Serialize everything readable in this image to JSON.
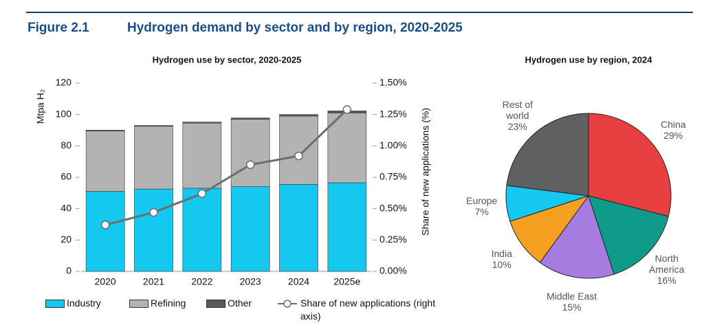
{
  "header": {
    "figure": "Figure 2.1",
    "title": "Hydrogen demand by sector and by region, 2020-2025"
  },
  "chart_data": [
    {
      "type": "bar",
      "stacked": true,
      "title": "Hydrogen use by sector, 2020-2025",
      "y_label": "Mtpa H₂",
      "y2_label": "Share of new applications (%)",
      "categories": [
        "2020",
        "2021",
        "2022",
        "2023",
        "2024",
        "2025e"
      ],
      "series": [
        {
          "name": "Industry",
          "color": "#14c8f0",
          "values": [
            51,
            52.5,
            53,
            54,
            55.5,
            56.5
          ]
        },
        {
          "name": "Refining",
          "color": "#b3b3b3",
          "values": [
            38.5,
            40,
            41.5,
            43,
            43.5,
            44.5
          ]
        },
        {
          "name": "Other",
          "color": "#595959",
          "values": [
            0.5,
            0.5,
            0.7,
            0.8,
            1,
            1.3
          ]
        },
        {
          "name": "Share of new applications (right axis)",
          "type": "line",
          "axis": "y2",
          "color": "#6d6d6d",
          "values": [
            0.37,
            0.47,
            0.62,
            0.85,
            0.92,
            1.29
          ]
        }
      ],
      "ylim": [
        0,
        120
      ],
      "yticks": [
        0,
        20,
        40,
        60,
        80,
        100,
        120
      ],
      "y2lim": [
        0,
        1.5
      ],
      "y2ticks": [
        {
          "value": 0,
          "label": "0.00%"
        },
        {
          "value": 0.25,
          "label": "0.25%"
        },
        {
          "value": 0.5,
          "label": "0.50%"
        },
        {
          "value": 0.75,
          "label": "0.75%"
        },
        {
          "value": 1,
          "label": "1.00%"
        },
        {
          "value": 1.25,
          "label": "1.25%"
        },
        {
          "value": 1.5,
          "label": "1.50%"
        }
      ]
    },
    {
      "type": "pie",
      "title": "Hydrogen use by region, 2024",
      "categories": [
        "China",
        "North America",
        "Middle East",
        "India",
        "Europe",
        "Rest of world"
      ],
      "values": [
        29,
        16,
        15,
        10,
        7,
        23
      ],
      "value_labels": [
        "29%",
        "16%",
        "15%",
        "10%",
        "7%",
        "23%"
      ],
      "colors": [
        "#e84040",
        "#0f9b8a",
        "#a57de0",
        "#f5a020",
        "#14c8f0",
        "#5f6062"
      ]
    }
  ]
}
